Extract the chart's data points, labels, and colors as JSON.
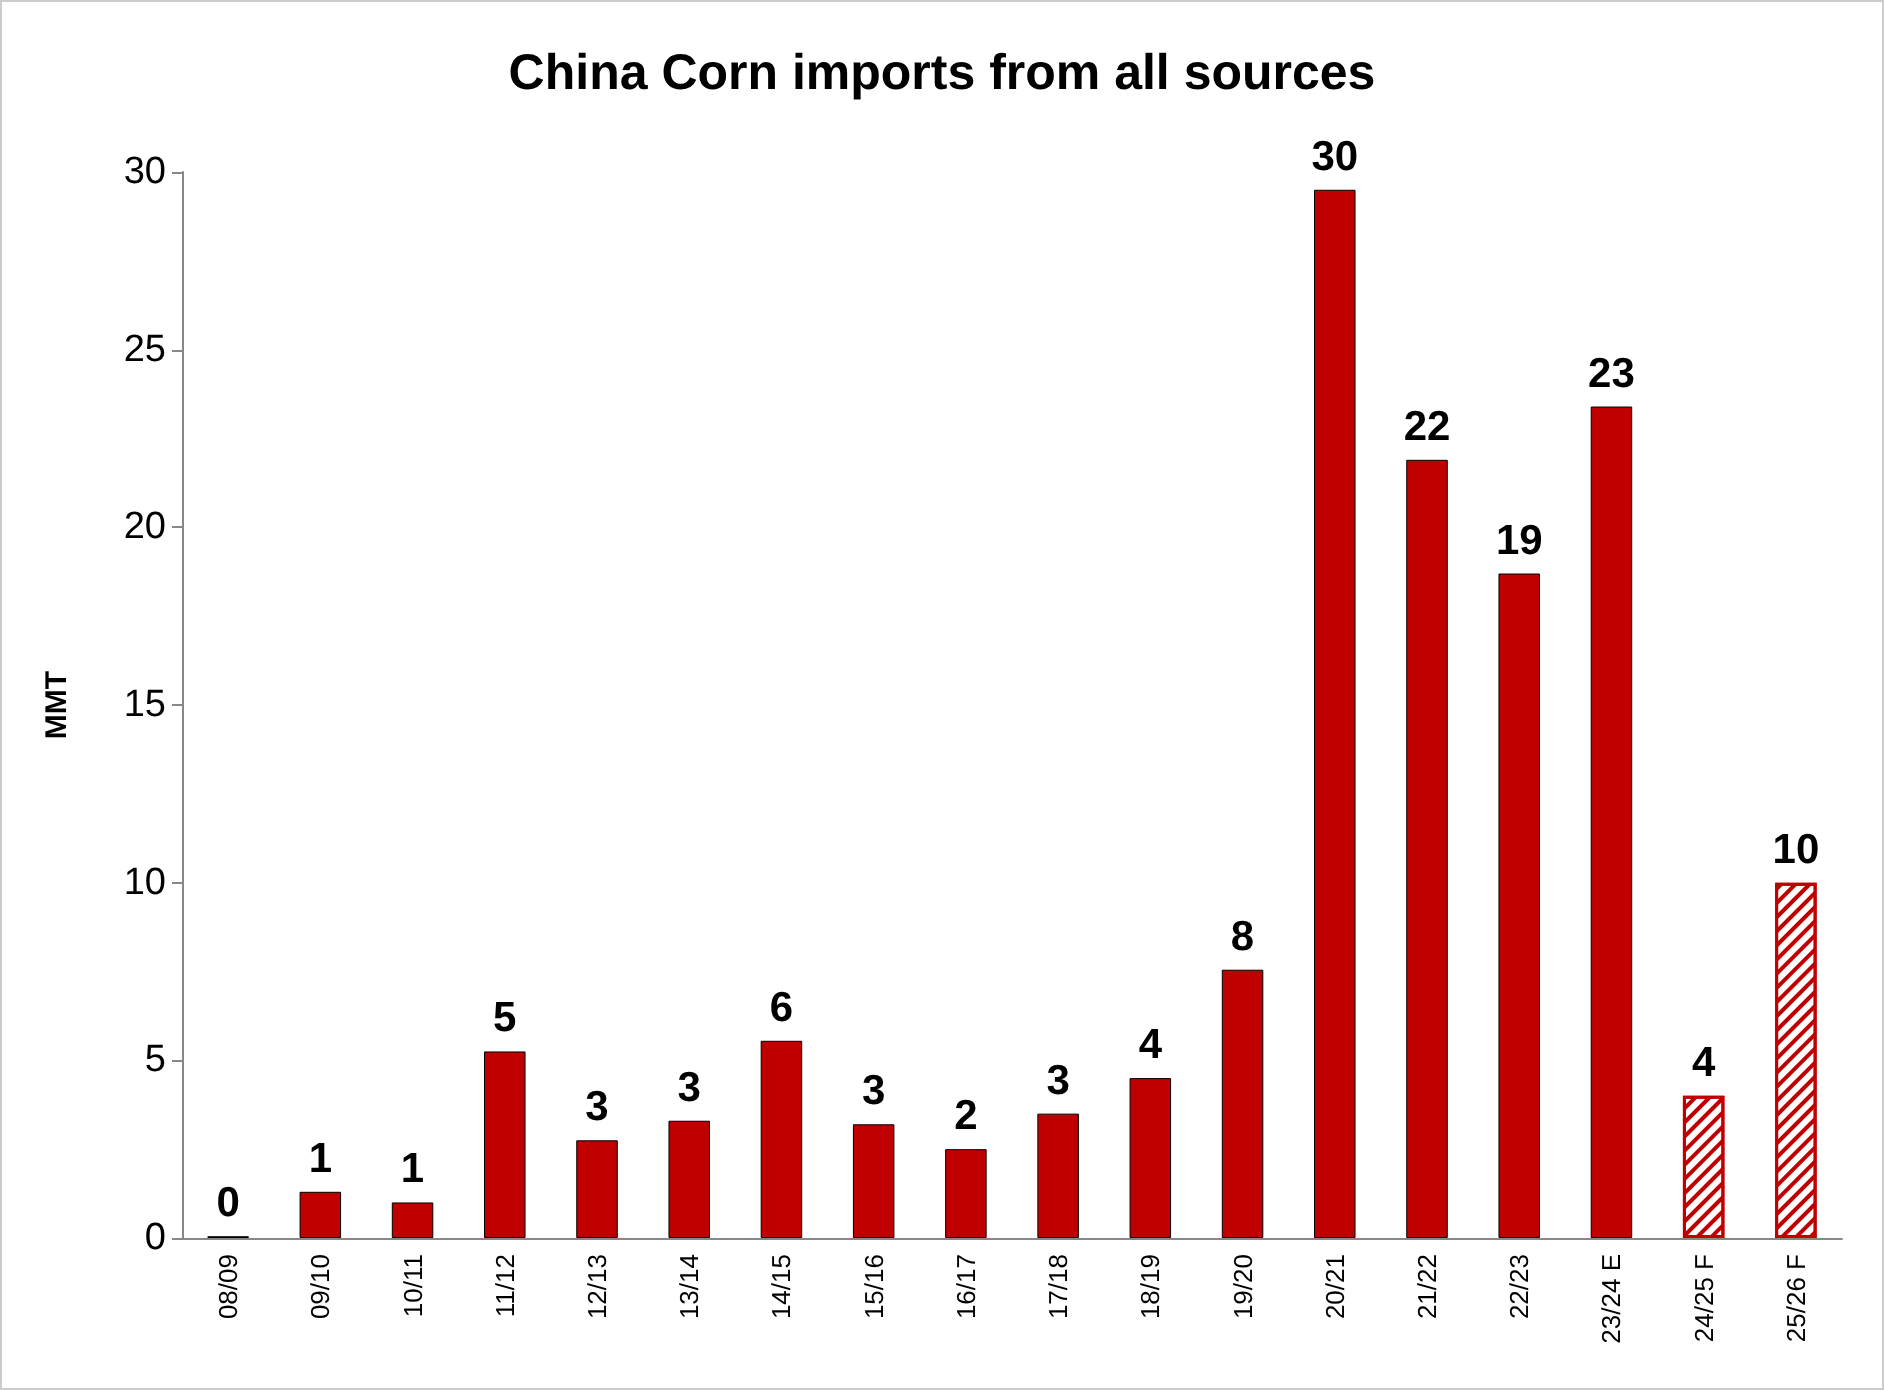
{
  "chart_data": {
    "type": "bar",
    "title": "China Corn imports from all sources",
    "ylabel": "MMT",
    "categories": [
      "08/09",
      "09/10",
      "10/11",
      "11/12",
      "12/13",
      "13/14",
      "14/15",
      "15/16",
      "16/17",
      "17/18",
      "18/19",
      "19/20",
      "20/21",
      "21/22",
      "22/23",
      "23/24 E",
      "24/25 F",
      "25/26 F"
    ],
    "stacked": true,
    "series": [
      {
        "color": "#c00000",
        "values": [
          0.05,
          1.3,
          1.0,
          5.25,
          2.75,
          3.3,
          5.55,
          3.2,
          2.5,
          3.5,
          4.5,
          7.55,
          29.5,
          21.9,
          18.7,
          23.4,
          null,
          null
        ],
        "value_labels": [
          "0",
          "1",
          "1",
          "5",
          "3",
          "3",
          "6",
          "3",
          "2",
          "3",
          "4",
          "8",
          "30",
          "22",
          "19",
          "23",
          null,
          null
        ]
      },
      {
        "color": "#c00000",
        "values": [
          null,
          null,
          null,
          null,
          null,
          null,
          null,
          null,
          null,
          null,
          null,
          null,
          null,
          null,
          null,
          null,
          4.0,
          10.0
        ],
        "value_labels": [
          null,
          null,
          null,
          null,
          null,
          null,
          null,
          null,
          null,
          null,
          null,
          null,
          null,
          null,
          null,
          null,
          "4",
          "10"
        ]
      }
    ],
    "ylim": [
      0,
      30
    ],
    "yticks": [
      0,
      5,
      10,
      15,
      20,
      25,
      30
    ],
    "grid": false
  }
}
